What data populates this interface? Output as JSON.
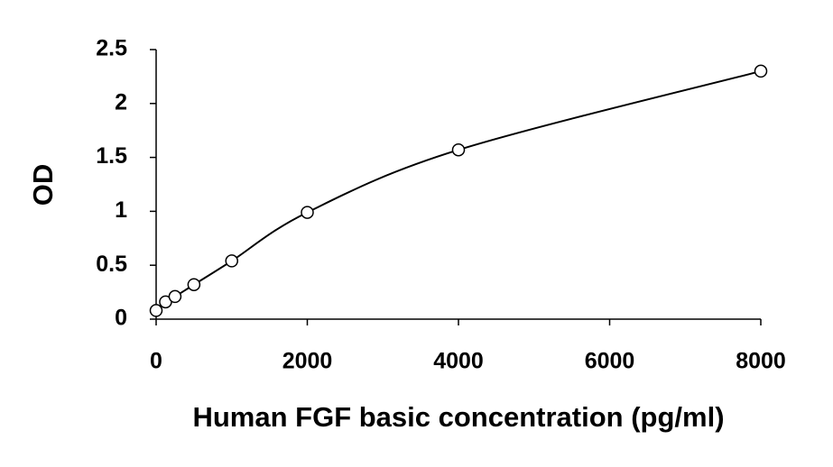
{
  "chart_data": {
    "type": "scatter",
    "x_label": "Human FGF basic concentration (pg/ml)",
    "y_label": "OD",
    "x": [
      0,
      125,
      250,
      500,
      1000,
      2000,
      4000,
      8000
    ],
    "values": [
      0.08,
      0.16,
      0.21,
      0.32,
      0.54,
      0.99,
      1.57,
      2.3
    ],
    "color": "#000000",
    "smooth_line": true,
    "xlim": [
      0,
      8000
    ],
    "xticks": [
      0,
      2000,
      4000,
      6000,
      8000
    ],
    "ylim": [
      0,
      2.5
    ],
    "yticks": [
      0,
      0.5,
      1,
      1.5,
      2,
      2.5
    ],
    "grid": false
  }
}
